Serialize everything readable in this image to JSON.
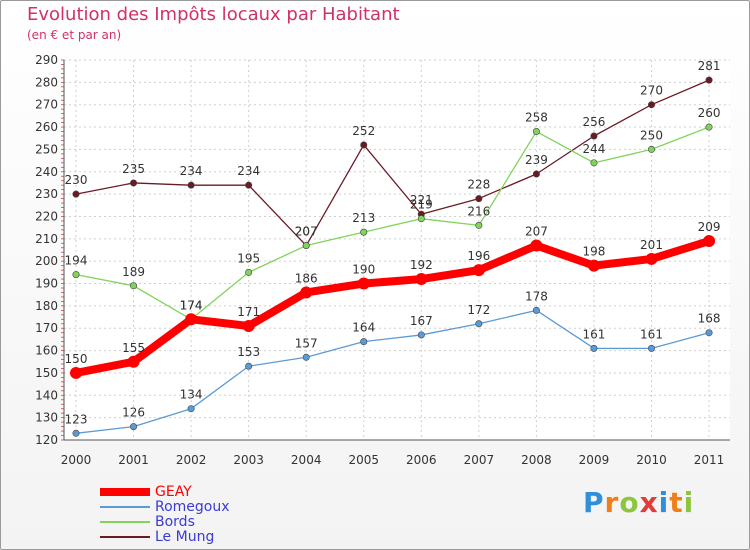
{
  "chart_data": {
    "type": "line",
    "title": "Evolution des Impôts locaux par Habitant",
    "subtitle": "(en € et par an)",
    "categories": [
      "2000",
      "2001",
      "2002",
      "2003",
      "2004",
      "2005",
      "2006",
      "2007",
      "2008",
      "2009",
      "2010",
      "2011"
    ],
    "ylim": [
      120,
      290
    ],
    "yticks": [
      120,
      130,
      140,
      150,
      160,
      170,
      180,
      190,
      200,
      210,
      220,
      230,
      240,
      250,
      260,
      270,
      280,
      290
    ],
    "grid": true,
    "series": [
      {
        "name": "GEAY",
        "color": "#ff0000",
        "values": [
          150,
          155,
          174,
          171,
          186,
          190,
          192,
          196,
          207,
          198,
          201,
          209
        ]
      },
      {
        "name": "Romegoux",
        "color": "#5b9bd5",
        "values": [
          123,
          126,
          134,
          153,
          157,
          164,
          167,
          172,
          178,
          161,
          161,
          168
        ]
      },
      {
        "name": "Bords",
        "color": "#80d45a",
        "values": [
          194,
          189,
          174,
          195,
          207,
          213,
          219,
          216,
          258,
          244,
          250,
          260
        ]
      },
      {
        "name": "Le Mung",
        "color": "#6b1a24",
        "values": [
          230,
          235,
          234,
          234,
          207,
          252,
          221,
          228,
          239,
          256,
          270,
          281
        ]
      }
    ]
  },
  "brand": {
    "letters": [
      "P",
      "r",
      "o",
      "x",
      "i",
      "t",
      "i"
    ],
    "colors": [
      "#2f8fd8",
      "#f07f1a",
      "#8cc63e",
      "#e23b3b",
      "#2f8fd8",
      "#f07f1a",
      "#8cc63e"
    ]
  }
}
